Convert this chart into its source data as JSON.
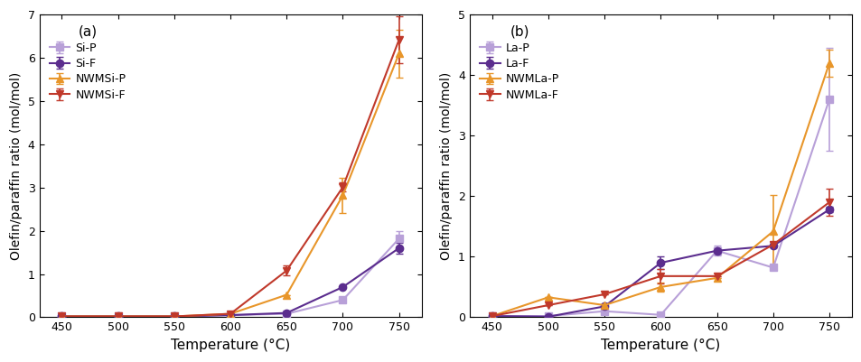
{
  "temp": [
    450,
    500,
    550,
    600,
    650,
    700,
    750
  ],
  "panel_a": {
    "label": "(a)",
    "series": [
      {
        "name": "Si-P",
        "color": "#b8a0d8",
        "marker": "s",
        "y": [
          0.02,
          0.02,
          0.02,
          0.05,
          0.08,
          0.4,
          1.82
        ],
        "yerr": [
          0.0,
          0.0,
          0.0,
          0.0,
          0.0,
          0.0,
          0.18
        ]
      },
      {
        "name": "Si-F",
        "color": "#5b2d8e",
        "marker": "o",
        "y": [
          0.02,
          0.02,
          0.02,
          0.05,
          0.1,
          0.7,
          1.6
        ],
        "yerr": [
          0.0,
          0.0,
          0.0,
          0.0,
          0.0,
          0.0,
          0.12
        ]
      },
      {
        "name": "NWMSi-P",
        "color": "#e8962a",
        "marker": "^",
        "y": [
          0.02,
          0.02,
          0.02,
          0.08,
          0.52,
          2.82,
          6.1
        ],
        "yerr": [
          0.0,
          0.0,
          0.0,
          0.0,
          0.0,
          0.4,
          0.55
        ]
      },
      {
        "name": "NWMSi-F",
        "color": "#c0392b",
        "marker": "v",
        "y": [
          0.02,
          0.02,
          0.02,
          0.08,
          1.08,
          3.01,
          6.42
        ],
        "yerr": [
          0.0,
          0.0,
          0.0,
          0.0,
          0.12,
          0.1,
          0.55
        ]
      }
    ],
    "ylim": [
      0,
      7
    ],
    "yticks": [
      0,
      1,
      2,
      3,
      4,
      5,
      6,
      7
    ],
    "ylabel": "Olefin/paraffin ratio (mol/mol)"
  },
  "panel_b": {
    "label": "(b)",
    "series": [
      {
        "name": "La-P",
        "color": "#b8a0d8",
        "marker": "s",
        "y": [
          0.02,
          0.02,
          0.1,
          0.04,
          1.1,
          0.82,
          3.6
        ],
        "yerr": [
          0.0,
          0.0,
          0.0,
          0.0,
          0.08,
          0.0,
          0.85
        ]
      },
      {
        "name": "La-F",
        "color": "#5b2d8e",
        "marker": "o",
        "y": [
          0.02,
          0.01,
          0.18,
          0.9,
          1.1,
          1.18,
          1.78
        ],
        "yerr": [
          0.0,
          0.0,
          0.0,
          0.1,
          0.05,
          0.0,
          0.05
        ]
      },
      {
        "name": "NWMLa-P",
        "color": "#e8962a",
        "marker": "^",
        "y": [
          0.02,
          0.33,
          0.2,
          0.5,
          0.65,
          1.42,
          4.2
        ],
        "yerr": [
          0.0,
          0.0,
          0.0,
          0.08,
          0.0,
          0.6,
          0.22
        ]
      },
      {
        "name": "NWMLa-F",
        "color": "#c0392b",
        "marker": "v",
        "y": [
          0.02,
          0.2,
          0.38,
          0.68,
          0.68,
          1.2,
          1.9
        ],
        "yerr": [
          0.0,
          0.0,
          0.0,
          0.12,
          0.0,
          0.05,
          0.22
        ]
      }
    ],
    "ylim": [
      0,
      5
    ],
    "yticks": [
      0,
      1,
      2,
      3,
      4,
      5
    ],
    "ylabel": "Olefin/paraffin ratio (mol/mol)"
  },
  "xlabel": "Temperature (°C)",
  "xticks": [
    450,
    500,
    550,
    600,
    650,
    700,
    750
  ],
  "background_color": "#ffffff",
  "linewidth": 1.5,
  "markersize": 6,
  "capsize": 3,
  "elinewidth": 1.2
}
